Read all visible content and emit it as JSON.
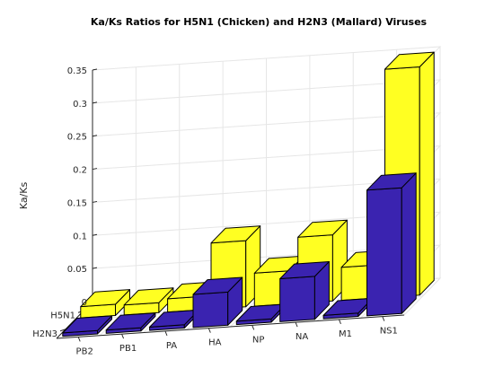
{
  "chart_data": {
    "type": "bar",
    "title": "Ka/Ks Ratios for H5N1 (Chicken) and H2N3 (Mallard) Viruses",
    "ylabel": "Ka/Ks",
    "xlabel": "",
    "categories": [
      "PB2",
      "PB1",
      "PA",
      "HA",
      "NP",
      "NA",
      "M1",
      "NS1"
    ],
    "series": [
      {
        "name": "H5N1",
        "color": "#ffff22",
        "values": [
          0.017,
          0.015,
          0.02,
          0.1,
          0.05,
          0.1,
          0.05,
          0.345
        ]
      },
      {
        "name": "H2N3",
        "color": "#3a23b0",
        "values": [
          0.005,
          0.005,
          0.005,
          0.05,
          0.005,
          0.065,
          0.005,
          0.19
        ]
      }
    ],
    "zlim": [
      0,
      0.35
    ],
    "zticks": [
      "0",
      "0.05",
      "0.1",
      "0.15",
      "0.2",
      "0.25",
      "0.3",
      "0.35"
    ],
    "grid": true
  }
}
